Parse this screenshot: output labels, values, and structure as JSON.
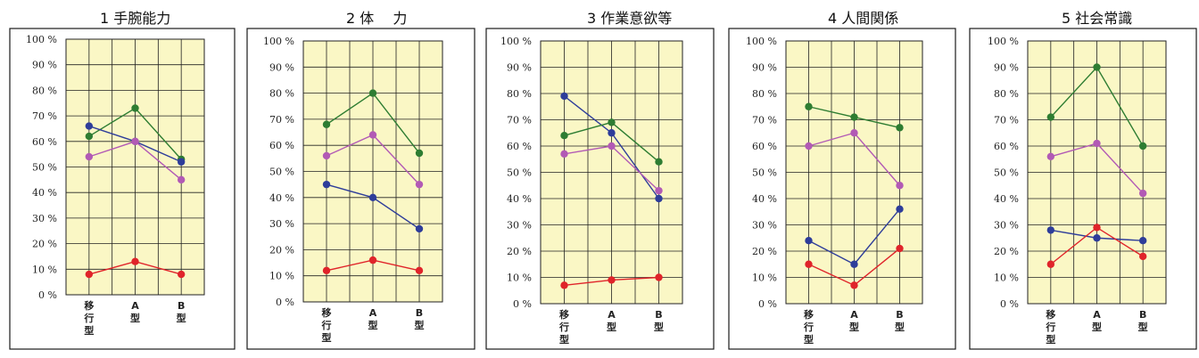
{
  "colors": {
    "plot_bg": "#faf7c5",
    "frame": "#1a1a1a",
    "grid": "#222222",
    "green": "#2e7d32",
    "blue": "#2e3d9a",
    "magenta": "#b25ab5",
    "red": "#e0242a"
  },
  "chart_data": [
    {
      "type": "line",
      "title": "1 手腕能力",
      "categories": [
        "移行型",
        "A型",
        "B型"
      ],
      "y_ticks": [
        "0 %",
        "10 %",
        "20 %",
        "30 %",
        "40 %",
        "50 %",
        "60 %",
        "70 %",
        "80 %",
        "90 %",
        "100 %"
      ],
      "ylim": [
        0,
        100
      ],
      "grid": true,
      "series": [
        {
          "color": "green",
          "values": [
            62,
            73,
            53
          ]
        },
        {
          "color": "blue",
          "values": [
            66,
            60,
            52
          ]
        },
        {
          "color": "magenta",
          "values": [
            54,
            60,
            45
          ]
        },
        {
          "color": "red",
          "values": [
            8,
            13,
            8
          ]
        }
      ]
    },
    {
      "type": "line",
      "title": "2 体　 力",
      "categories": [
        "移行型",
        "A型",
        "B型"
      ],
      "y_ticks": [
        "0 %",
        "10 %",
        "20 %",
        "30 %",
        "40 %",
        "50 %",
        "60 %",
        "70 %",
        "80 %",
        "90 %",
        "100 %"
      ],
      "ylim": [
        0,
        100
      ],
      "grid": true,
      "series": [
        {
          "color": "green",
          "values": [
            68,
            80,
            57
          ]
        },
        {
          "color": "magenta",
          "values": [
            56,
            64,
            45
          ]
        },
        {
          "color": "blue",
          "values": [
            45,
            40,
            28
          ]
        },
        {
          "color": "red",
          "values": [
            12,
            16,
            12
          ]
        }
      ]
    },
    {
      "type": "line",
      "title": "3 作業意欲等",
      "categories": [
        "移行型",
        "A型",
        "B型"
      ],
      "y_ticks": [
        "0 %",
        "10 %",
        "20 %",
        "30 %",
        "40 %",
        "50 %",
        "60 %",
        "70 %",
        "80 %",
        "90 %",
        "100 %"
      ],
      "ylim": [
        0,
        100
      ],
      "grid": true,
      "series": [
        {
          "color": "blue",
          "values": [
            79,
            65,
            40
          ]
        },
        {
          "color": "green",
          "values": [
            64,
            69,
            54
          ]
        },
        {
          "color": "magenta",
          "values": [
            57,
            60,
            43
          ]
        },
        {
          "color": "red",
          "values": [
            7,
            9,
            10
          ]
        }
      ]
    },
    {
      "type": "line",
      "title": "4 人間関係",
      "categories": [
        "移行型",
        "A型",
        "B型"
      ],
      "y_ticks": [
        "0 %",
        "10 %",
        "20 %",
        "30 %",
        "40 %",
        "50 %",
        "60 %",
        "70 %",
        "80 %",
        "90 %",
        "100 %"
      ],
      "ylim": [
        0,
        100
      ],
      "grid": true,
      "series": [
        {
          "color": "green",
          "values": [
            75,
            71,
            67
          ]
        },
        {
          "color": "magenta",
          "values": [
            60,
            65,
            45
          ]
        },
        {
          "color": "blue",
          "values": [
            24,
            15,
            36
          ]
        },
        {
          "color": "red",
          "values": [
            15,
            7,
            21
          ]
        }
      ]
    },
    {
      "type": "line",
      "title": "5 社会常識",
      "categories": [
        "移行型",
        "A型",
        "B型"
      ],
      "y_ticks": [
        "0 %",
        "10 %",
        "20 %",
        "30 %",
        "40 %",
        "50 %",
        "60 %",
        "70 %",
        "80 %",
        "90 %",
        "100 %"
      ],
      "ylim": [
        0,
        100
      ],
      "grid": true,
      "series": [
        {
          "color": "green",
          "values": [
            71,
            90,
            60
          ]
        },
        {
          "color": "magenta",
          "values": [
            56,
            61,
            42
          ]
        },
        {
          "color": "blue",
          "values": [
            28,
            25,
            24
          ]
        },
        {
          "color": "red",
          "values": [
            15,
            29,
            18
          ]
        }
      ]
    }
  ]
}
